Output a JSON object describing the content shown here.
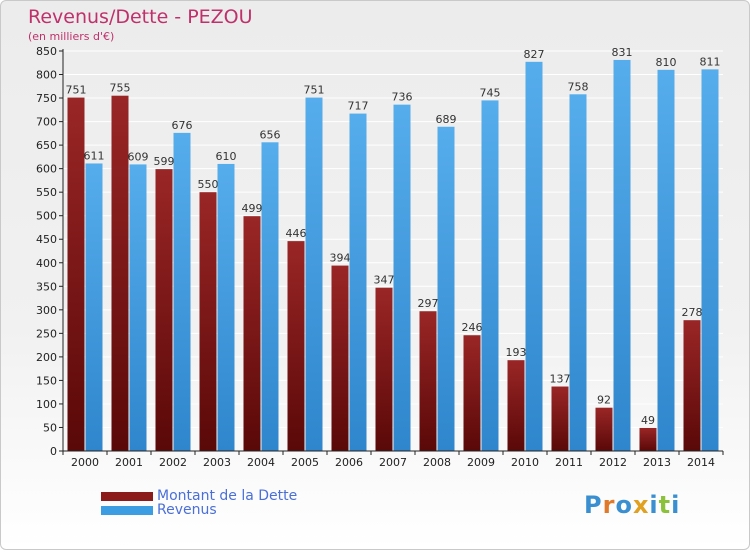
{
  "header": {
    "title": "Revenus/Dette - PEZOU",
    "subtitle": "(en milliers d'€)"
  },
  "logo": {
    "text": "Proxiti",
    "letters": [
      {
        "ch": "P",
        "color": "#3a8fd0"
      },
      {
        "ch": "r",
        "color": "#e07a2a"
      },
      {
        "ch": "o",
        "color": "#3a8fd0"
      },
      {
        "ch": "x",
        "color": "#e0a020"
      },
      {
        "ch": "i",
        "color": "#3a8fd0"
      },
      {
        "ch": "t",
        "color": "#8cc13c"
      },
      {
        "ch": "i",
        "color": "#3a8fd0"
      }
    ]
  },
  "colors": {
    "dette": "#8b1a1a",
    "revenus": "#3d9de2",
    "axis": "#222222",
    "grid": "#ffffff",
    "title": "#c0306a",
    "legend_text": "#4a6fd8"
  },
  "chart_data": {
    "type": "bar",
    "title": "Revenus/Dette - PEZOU",
    "ylabel": "(en milliers d'€)",
    "xlabel": "",
    "ylim": [
      0,
      850
    ],
    "ytick_step": 50,
    "grid": true,
    "legend_position": "bottom-left",
    "categories": [
      "2000",
      "2001",
      "2002",
      "2003",
      "2004",
      "2005",
      "2006",
      "2007",
      "2008",
      "2009",
      "2010",
      "2011",
      "2012",
      "2013",
      "2014"
    ],
    "series": [
      {
        "name": "Montant de la Dette",
        "values": [
          751,
          755,
          599,
          550,
          499,
          446,
          394,
          347,
          297,
          246,
          193,
          137,
          92,
          49,
          278
        ]
      },
      {
        "name": "Revenus",
        "values": [
          611,
          609,
          676,
          610,
          656,
          751,
          717,
          736,
          689,
          745,
          827,
          758,
          831,
          810,
          811
        ]
      }
    ]
  }
}
